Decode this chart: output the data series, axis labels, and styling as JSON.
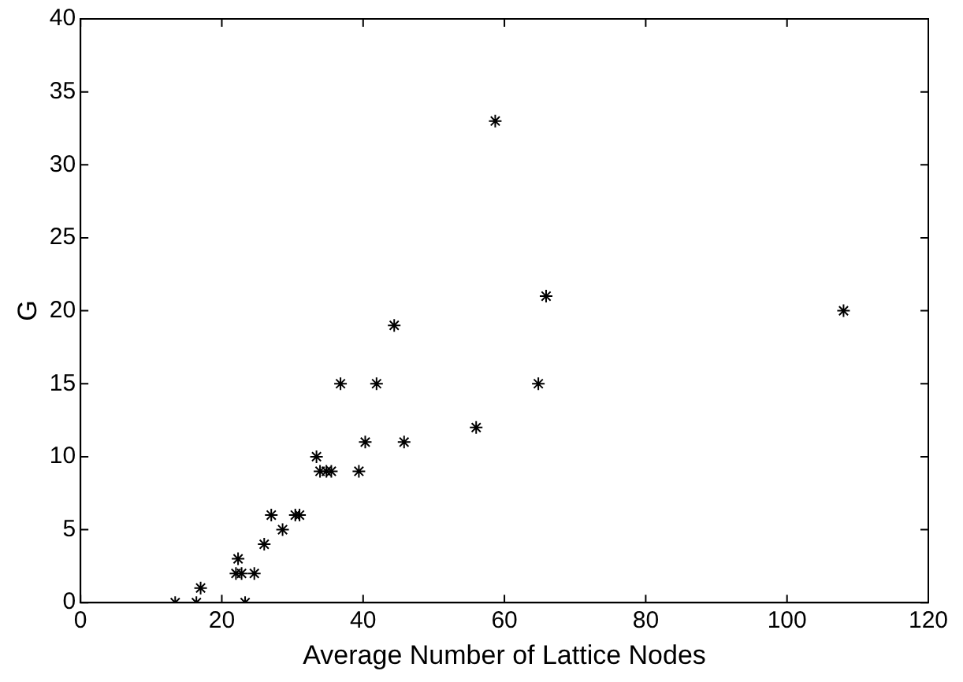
{
  "chart_data": {
    "type": "scatter",
    "xlabel": "Average Number of Lattice Nodes",
    "ylabel": "G",
    "series": [
      {
        "color": "#000000",
        "x": [
          13.4,
          16.4,
          17,
          23.3,
          22.3,
          22,
          22.8,
          24.6,
          26,
          27,
          28.6,
          30.4,
          31,
          33.4,
          33.9,
          34.8,
          35.5,
          36.8,
          39.4,
          40.3,
          41.9,
          44.4,
          45.8,
          56,
          58.7,
          64.8,
          65.9,
          108
        ],
        "values": [
          0,
          0,
          1,
          0,
          3,
          2,
          2,
          2,
          4,
          6,
          5,
          6,
          6,
          10,
          9,
          9,
          9,
          15,
          9,
          11,
          15,
          19,
          11,
          12,
          33,
          15,
          21,
          20
        ]
      }
    ],
    "xlim": [
      0,
      120
    ],
    "xticks": [
      0,
      20,
      40,
      60,
      80,
      100,
      120
    ],
    "ylim": [
      0,
      40
    ],
    "yticks": [
      0,
      5,
      10,
      15,
      20,
      25,
      30,
      35,
      40
    ],
    "marker": "cross",
    "grid": false,
    "legend": false
  }
}
